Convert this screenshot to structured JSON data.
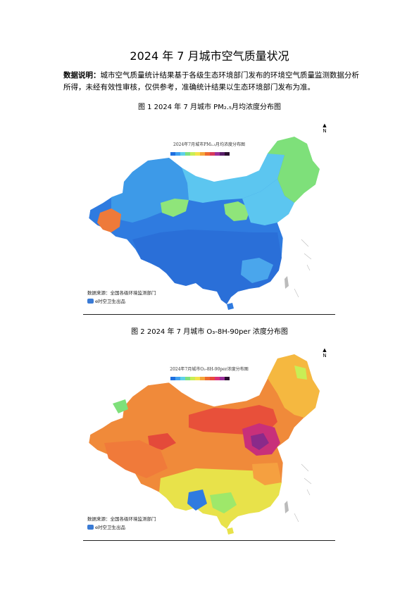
{
  "title": "2024 年 7 月城市空气质量状况",
  "note": {
    "label": "数据说明：",
    "text": "城市空气质量统计结果基于各级生态环境部门发布的环境空气质量监测数据分析所得，未经有效性审核，仅供参考，准确统计结果以生态环境部门发布为准。"
  },
  "figure1": {
    "caption": "图 1 2024 年 7 月城市 PM₂.₅月均浓度分布图",
    "map_title": "2024年7月城市PM₂.₅月均浓度分布图",
    "source": "数据来源：全国各级环境监测部门",
    "publisher": "e时空卫生出品",
    "north": "N",
    "legend_colors": [
      "#1f6fe0",
      "#3fa0f0",
      "#5ed0e8",
      "#7fe07f",
      "#c8ee55",
      "#f5e24a",
      "#f5a63a",
      "#ee6a2f",
      "#d83a5a",
      "#9a2f9a",
      "#5a1f6a",
      "#2a0f2f"
    ]
  },
  "figure2": {
    "caption": "图 2 2024 年 7 月城市 O₃-8H-90per 浓度分布图",
    "map_title": "2024年7月城市O₃-8H-90per浓度分布图",
    "source": "数据来源：全国各级环境监测部门",
    "publisher": "e时空卫生出品",
    "north": "N",
    "legend_colors": [
      "#1f6fe0",
      "#3fa0f0",
      "#5ed0e8",
      "#7fe07f",
      "#c8ee55",
      "#f5e24a",
      "#f5a63a",
      "#ee6a2f",
      "#e84a3a",
      "#d8307a",
      "#9a2f9a",
      "#2a0f2f"
    ]
  }
}
